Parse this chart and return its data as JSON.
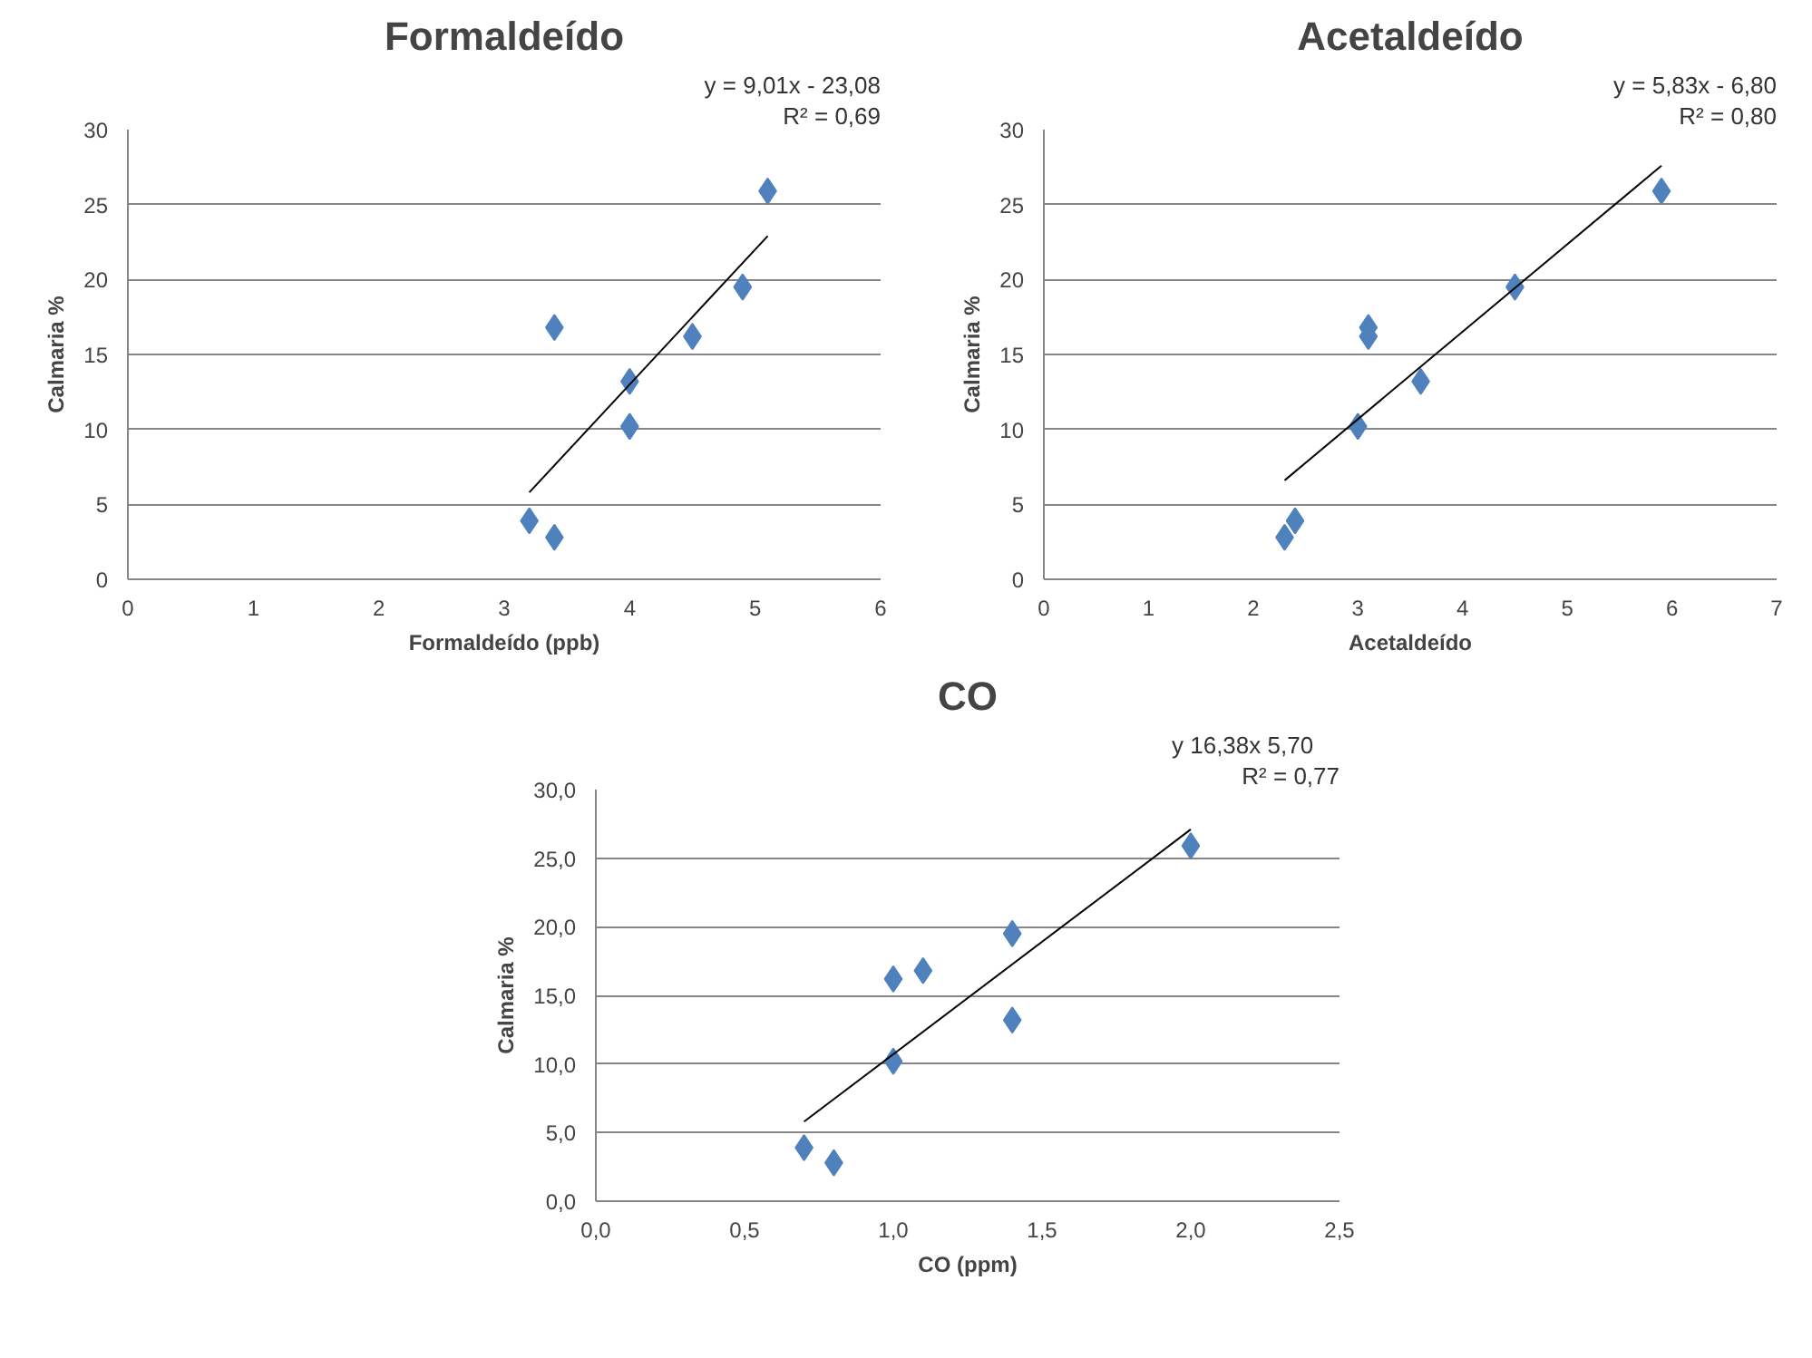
{
  "chart_data": [
    {
      "type": "scatter",
      "title": "Formaldeído",
      "xlabel": "Formaldeído (ppb)",
      "ylabel": "Calmaria %",
      "annotations": [
        "y = 9,01x - 23,08",
        "R² = 0,69"
      ],
      "xlim": [
        0,
        6
      ],
      "xticks": [
        0,
        1,
        2,
        3,
        4,
        5,
        6
      ],
      "ylim": [
        0,
        30
      ],
      "yticks": [
        0,
        5,
        10,
        15,
        20,
        25,
        30
      ],
      "grid": "y",
      "series": [
        {
          "marker": "diamond",
          "color": "#4f81bd",
          "x": [
            3.2,
            3.4,
            3.4,
            4.0,
            4.0,
            4.5,
            4.9,
            5.1
          ],
          "values": [
            3.9,
            2.8,
            16.8,
            13.2,
            10.2,
            16.2,
            19.5,
            25.9
          ]
        },
        {
          "type": "line",
          "color": "#000000",
          "x": [
            3.2,
            5.1
          ],
          "values": [
            5.8,
            22.9
          ]
        }
      ]
    },
    {
      "type": "scatter",
      "title": "Acetaldeído",
      "xlabel": "Acetaldeído",
      "ylabel": "Calmaria %",
      "annotations": [
        "y = 5,83x - 6,80",
        "R² = 0,80"
      ],
      "xlim": [
        0,
        7
      ],
      "xticks": [
        0,
        1,
        2,
        3,
        4,
        5,
        6,
        7
      ],
      "ylim": [
        0,
        30
      ],
      "yticks": [
        0,
        5,
        10,
        15,
        20,
        25,
        30
      ],
      "grid": "y",
      "series": [
        {
          "marker": "diamond",
          "color": "#4f81bd",
          "x": [
            2.4,
            2.3,
            3.1,
            3.6,
            3.0,
            3.1,
            4.5,
            5.9
          ],
          "values": [
            3.9,
            2.8,
            16.8,
            13.2,
            10.2,
            16.2,
            19.5,
            25.9
          ]
        },
        {
          "type": "line",
          "color": "#000000",
          "x": [
            2.3,
            5.9
          ],
          "values": [
            6.6,
            27.6
          ]
        }
      ]
    },
    {
      "type": "scatter",
      "title": "CO",
      "xlabel": "CO (ppm)",
      "ylabel": "Calmaria %",
      "annotations": [
        "y   16,38x   5,70",
        "R² = 0,77"
      ],
      "xlim": [
        0,
        2.5
      ],
      "xticks": [
        {
          "value": 0,
          "label": "0,0"
        },
        {
          "value": 0.5,
          "label": "0,5"
        },
        {
          "value": 1,
          "label": "1,0"
        },
        {
          "value": 1.5,
          "label": "1,5"
        },
        {
          "value": 2,
          "label": "2,0"
        },
        {
          "value": 2.5,
          "label": "2,5"
        }
      ],
      "ylim": [
        0,
        30
      ],
      "yticks": [
        {
          "value": 0,
          "label": "0,0"
        },
        {
          "value": 5,
          "label": "5,0"
        },
        {
          "value": 10,
          "label": "10,0"
        },
        {
          "value": 15,
          "label": "15,0"
        },
        {
          "value": 20,
          "label": "20,0"
        },
        {
          "value": 25,
          "label": "25,0"
        },
        {
          "value": 30,
          "label": "30,0"
        }
      ],
      "grid": "y",
      "series": [
        {
          "marker": "diamond",
          "color": "#4f81bd",
          "x": [
            0.7,
            0.8,
            1.1,
            1.4,
            1.0,
            1.0,
            1.4,
            2.0
          ],
          "values": [
            3.9,
            2.8,
            16.8,
            13.2,
            10.2,
            16.2,
            19.5,
            25.9
          ]
        },
        {
          "type": "line",
          "color": "#000000",
          "x": [
            0.7,
            2.0
          ],
          "values": [
            5.8,
            27.1
          ]
        }
      ]
    }
  ]
}
